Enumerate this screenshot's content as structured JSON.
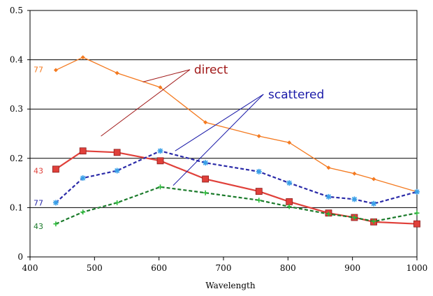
{
  "chart_data": {
    "type": "line",
    "title": "",
    "xlabel": "Wavelength",
    "ylabel": "",
    "xlim": [
      400,
      1000
    ],
    "ylim": [
      0,
      0.5
    ],
    "xticks": [
      400,
      500,
      600,
      700,
      800,
      900,
      1000
    ],
    "yticks": [
      0,
      0.1,
      0.2,
      0.3,
      0.4,
      0.5
    ],
    "ytick_labels": [
      "0",
      "0.1",
      "0.2",
      "0.3",
      "0.4",
      "0.5"
    ],
    "grid": "horizontal",
    "series": [
      {
        "tag": "77",
        "color": "#f47a20",
        "style": "solid",
        "marker": "diamond",
        "x": [
          440,
          482,
          535,
          602,
          672,
          755,
          802,
          863,
          903,
          933,
          1000
        ],
        "y": [
          0.379,
          0.405,
          0.373,
          0.344,
          0.273,
          0.245,
          0.232,
          0.181,
          0.169,
          0.158,
          0.132
        ]
      },
      {
        "tag": "43",
        "color": "#e0403a",
        "style": "solid",
        "marker": "square",
        "x": [
          440,
          482,
          535,
          602,
          672,
          755,
          802,
          863,
          903,
          933,
          1000
        ],
        "y": [
          0.178,
          0.215,
          0.212,
          0.195,
          0.158,
          0.133,
          0.112,
          0.089,
          0.08,
          0.071,
          0.067
        ]
      },
      {
        "tag": "77",
        "color": "#2a2aa8",
        "style": "dashed",
        "marker": "star",
        "x": [
          440,
          482,
          535,
          602,
          672,
          755,
          802,
          863,
          903,
          933,
          1000
        ],
        "y": [
          0.11,
          0.16,
          0.175,
          0.215,
          0.191,
          0.173,
          0.15,
          0.122,
          0.117,
          0.108,
          0.132
        ]
      },
      {
        "tag": "43",
        "color": "#1a7a2a",
        "style": "dashed",
        "marker": "cross",
        "x": [
          440,
          482,
          535,
          602,
          672,
          755,
          802,
          863,
          903,
          933,
          1000
        ],
        "y": [
          0.067,
          0.091,
          0.11,
          0.142,
          0.13,
          0.115,
          0.102,
          0.087,
          0.08,
          0.072,
          0.089
        ]
      }
    ],
    "annotations": [
      {
        "text": "direct",
        "color": "#a01818",
        "label_at": [
          650,
          0.38
        ],
        "pointer_start": [
          648,
          0.38
        ],
        "targets": [
          [
            575,
            0.355
          ],
          [
            510,
            0.245
          ]
        ]
      },
      {
        "text": "scattered",
        "color": "#1a1aa8",
        "label_at": [
          765,
          0.33
        ],
        "pointer_start": [
          762,
          0.33
        ],
        "targets": [
          [
            625,
            0.215
          ],
          [
            622,
            0.145
          ]
        ]
      }
    ]
  }
}
